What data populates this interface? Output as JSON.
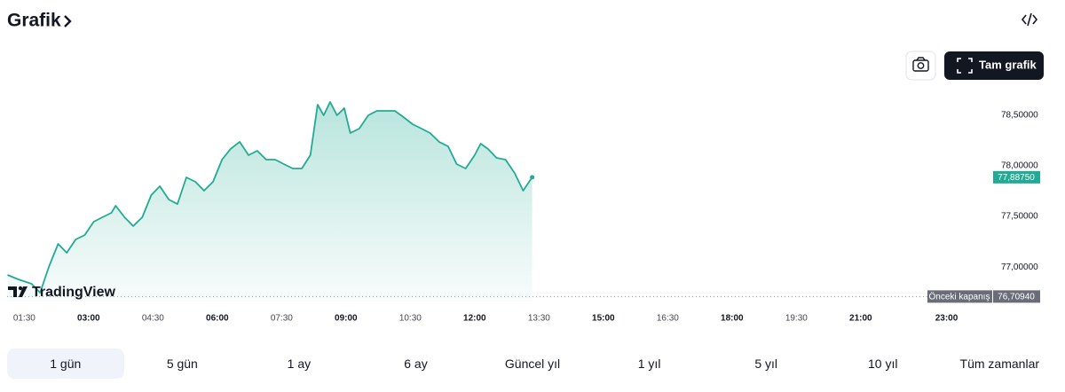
{
  "header": {
    "title": "Grafik"
  },
  "toolbar": {
    "fullscreen": "Tam grafik"
  },
  "logo": "TradingView",
  "ranges": [
    "1 gün",
    "5 gün",
    "1 ay",
    "6 ay",
    "Güncel yıl",
    "1 yıl",
    "5 yıl",
    "10 yıl",
    "Tüm zamanlar"
  ],
  "selected_range": 0,
  "chart_data": {
    "type": "area",
    "color": "#22ab94",
    "x": [
      1.11,
      1.36,
      1.67,
      1.87,
      2.08,
      2.29,
      2.49,
      2.7,
      2.91,
      3.12,
      3.32,
      3.53,
      3.63,
      3.84,
      4.04,
      4.25,
      4.46,
      4.66,
      4.87,
      5.07,
      5.28,
      5.49,
      5.69,
      5.9,
      6.11,
      6.31,
      6.52,
      6.73,
      6.93,
      7.14,
      7.35,
      7.55,
      7.76,
      7.97,
      8.17,
      8.34,
      8.48,
      8.63,
      8.79,
      8.96,
      9.1,
      9.31,
      9.52,
      9.72,
      9.93,
      10.14,
      10.34,
      10.55,
      10.76,
      10.96,
      11.17,
      11.38,
      11.58,
      11.79,
      12.0,
      12.14,
      12.31,
      12.51,
      12.72,
      12.93,
      13.13,
      13.34
    ],
    "values": [
      76.923,
      76.879,
      76.835,
      76.748,
      77.01,
      77.229,
      77.142,
      77.273,
      77.317,
      77.448,
      77.492,
      77.536,
      77.606,
      77.492,
      77.405,
      77.492,
      77.711,
      77.799,
      77.667,
      77.623,
      77.886,
      77.842,
      77.755,
      77.842,
      78.061,
      78.167,
      78.237,
      78.105,
      78.149,
      78.061,
      78.061,
      78.018,
      77.974,
      77.974,
      78.105,
      78.604,
      78.499,
      78.631,
      78.499,
      78.569,
      78.324,
      78.368,
      78.499,
      78.543,
      78.543,
      78.543,
      78.482,
      78.412,
      78.368,
      78.324,
      78.237,
      78.193,
      78.018,
      77.974,
      78.105,
      78.219,
      78.167,
      78.079,
      78.061,
      77.93,
      77.755,
      77.8875
    ],
    "last_price_label": "77,88750",
    "previous_close": {
      "name": "Önceki kapanış",
      "value": 76.7094,
      "label": "76,70940"
    },
    "xlim": [
      1.1,
      23.9
    ],
    "ylim": [
      76.66,
      79.2
    ],
    "xticks": [
      {
        "value": 1.5,
        "label": "01:30"
      },
      {
        "value": 3,
        "label": "03:00"
      },
      {
        "value": 4.5,
        "label": "04:30"
      },
      {
        "value": 6,
        "label": "06:00"
      },
      {
        "value": 7.5,
        "label": "07:30"
      },
      {
        "value": 9,
        "label": "09:00"
      },
      {
        "value": 10.5,
        "label": "10:30"
      },
      {
        "value": 12,
        "label": "12:00"
      },
      {
        "value": 13.5,
        "label": "13:30"
      },
      {
        "value": 15,
        "label": "15:00"
      },
      {
        "value": 16.5,
        "label": "16:30"
      },
      {
        "value": 18,
        "label": "18:00"
      },
      {
        "value": 19.5,
        "label": "19:30"
      },
      {
        "value": 21,
        "label": "21:00"
      },
      {
        "value": 23,
        "label": "23:00"
      }
    ],
    "yticks": [
      {
        "value": 77,
        "label": "77,00000"
      },
      {
        "value": 77.5,
        "label": "77,50000"
      },
      {
        "value": 78,
        "label": "78,00000"
      },
      {
        "value": 78.5,
        "label": "78,50000"
      }
    ]
  }
}
